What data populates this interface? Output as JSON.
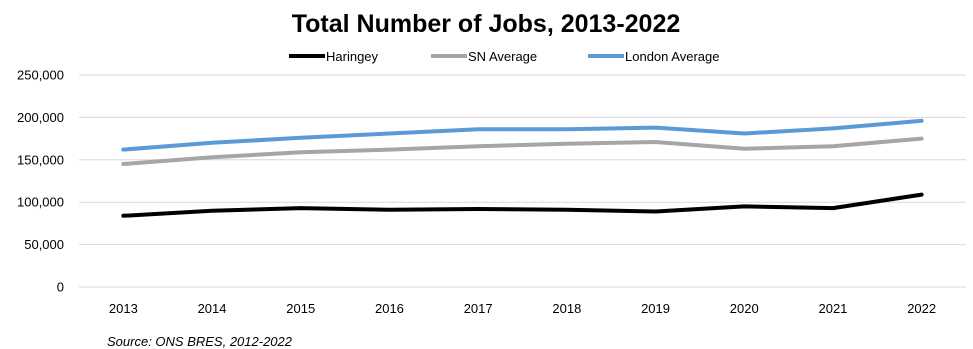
{
  "chart_data": {
    "type": "line",
    "title": "Total Number of Jobs, 2013-2022",
    "xlabel": "",
    "ylabel": "",
    "categories": [
      "2013",
      "2014",
      "2015",
      "2016",
      "2017",
      "2018",
      "2019",
      "2020",
      "2021",
      "2022"
    ],
    "ylim": [
      0,
      250000
    ],
    "yticks": [
      0,
      50000,
      100000,
      150000,
      200000,
      250000
    ],
    "ytick_labels": [
      "0",
      "50,000",
      "100,000",
      "150,000",
      "200,000",
      "250,000"
    ],
    "grid": true,
    "legend_position": "top",
    "series": [
      {
        "name": "Haringey",
        "color": "#000000",
        "values": [
          84000,
          90000,
          93000,
          91000,
          92000,
          91000,
          89000,
          95000,
          93000,
          109000
        ]
      },
      {
        "name": "SN Average",
        "color": "#a6a6a6",
        "values": [
          145000,
          153000,
          159000,
          162000,
          166000,
          169000,
          171000,
          163000,
          166000,
          175000
        ]
      },
      {
        "name": "London Average",
        "color": "#5b9bd5",
        "values": [
          162000,
          170000,
          176000,
          181000,
          186000,
          186000,
          188000,
          181000,
          187000,
          196000
        ]
      }
    ],
    "source": "Source: ONS BRES, 2012-2022"
  }
}
